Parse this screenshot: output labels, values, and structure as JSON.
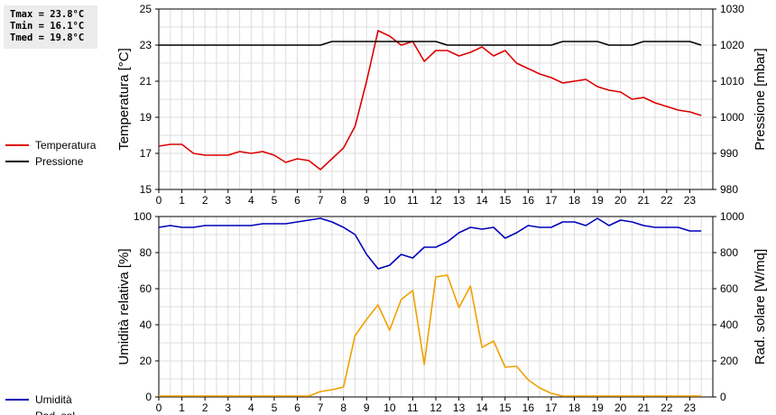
{
  "stats": {
    "tmax": "Tmax = 23.8°C",
    "tmin": "Tmin = 16.1°C",
    "tmed": "Tmed = 19.8°C"
  },
  "x_ticks": [
    "0",
    "1",
    "2",
    "3",
    "4",
    "5",
    "6",
    "7",
    "8",
    "9",
    "10",
    "11",
    "12",
    "13",
    "14",
    "15",
    "16",
    "17",
    "18",
    "19",
    "20",
    "21",
    "22",
    "23"
  ],
  "chart_data": [
    {
      "type": "line",
      "x_range": [
        0,
        24
      ],
      "grid": true,
      "legend_position": "left",
      "y_left": {
        "label": "Temperatura [°C]",
        "range": [
          15,
          25
        ],
        "ticks": [
          "15",
          "17",
          "19",
          "21",
          "23",
          "25"
        ]
      },
      "y_right": {
        "label": "Pressione [mbar]",
        "range": [
          980,
          1030
        ],
        "ticks": [
          "980",
          "990",
          "1000",
          "1010",
          "1020",
          "1030"
        ]
      },
      "series": [
        {
          "name": "Temperatura",
          "axis": "left",
          "color": "#dd0000",
          "x": [
            0,
            0.5,
            1,
            1.5,
            2,
            2.5,
            3,
            3.5,
            4,
            4.5,
            5,
            5.5,
            6,
            6.5,
            7,
            7.5,
            8,
            8.5,
            9,
            9.5,
            10,
            10.5,
            11,
            11.5,
            12,
            12.5,
            13,
            13.5,
            14,
            14.5,
            15,
            15.5,
            16,
            16.5,
            17,
            17.5,
            18,
            18.5,
            19,
            19.5,
            20,
            20.5,
            21,
            21.5,
            22,
            22.5,
            23,
            23.5
          ],
          "y": [
            17.4,
            17.5,
            17.5,
            17.0,
            16.9,
            16.9,
            16.9,
            17.1,
            17.0,
            17.1,
            16.9,
            16.5,
            16.7,
            16.6,
            16.1,
            16.7,
            17.3,
            18.5,
            21.0,
            23.8,
            23.5,
            23.0,
            23.2,
            22.1,
            22.7,
            22.7,
            22.4,
            22.6,
            22.9,
            22.4,
            22.7,
            22.0,
            21.7,
            21.4,
            21.2,
            20.9,
            21.0,
            21.1,
            20.7,
            20.5,
            20.4,
            20.0,
            20.1,
            19.8,
            19.6,
            19.4,
            19.3,
            19.1
          ]
        },
        {
          "name": "Pressione",
          "axis": "right",
          "color": "#000000",
          "x": [
            0,
            0.5,
            1,
            1.5,
            2,
            2.5,
            3,
            3.5,
            4,
            4.5,
            5,
            5.5,
            6,
            6.5,
            7,
            7.5,
            8,
            8.5,
            9,
            9.5,
            10,
            10.5,
            11,
            11.5,
            12,
            12.5,
            13,
            13.5,
            14,
            14.5,
            15,
            15.5,
            16,
            16.5,
            17,
            17.5,
            18,
            18.5,
            19,
            19.5,
            20,
            20.5,
            21,
            21.5,
            22,
            22.5,
            23,
            23.5
          ],
          "y": [
            1020,
            1020,
            1020,
            1020,
            1020,
            1020,
            1020,
            1020,
            1020,
            1020,
            1020,
            1020,
            1020,
            1020,
            1020,
            1021,
            1021,
            1021,
            1021,
            1021,
            1021,
            1021,
            1021,
            1021,
            1021,
            1020,
            1020,
            1020,
            1020,
            1020,
            1020,
            1020,
            1020,
            1020,
            1020,
            1021,
            1021,
            1021,
            1021,
            1020,
            1020,
            1020,
            1021,
            1021,
            1021,
            1021,
            1021,
            1020
          ]
        }
      ]
    },
    {
      "type": "line",
      "x_range": [
        0,
        24
      ],
      "grid": true,
      "legend_position": "left",
      "y_left": {
        "label": "Umidità relativa [%]",
        "range": [
          0,
          100
        ],
        "ticks": [
          "0",
          "20",
          "40",
          "60",
          "80",
          "100"
        ]
      },
      "y_right": {
        "label": "Rad. solare [W/mq]",
        "range": [
          0,
          1000
        ],
        "ticks": [
          "0",
          "200",
          "400",
          "600",
          "800",
          "1000"
        ]
      },
      "series": [
        {
          "name": "Umidità",
          "axis": "left",
          "color": "#0000bb",
          "x": [
            0,
            0.5,
            1,
            1.5,
            2,
            2.5,
            3,
            3.5,
            4,
            4.5,
            5,
            5.5,
            6,
            6.5,
            7,
            7.5,
            8,
            8.5,
            9,
            9.5,
            10,
            10.5,
            11,
            11.5,
            12,
            12.5,
            13,
            13.5,
            14,
            14.5,
            15,
            15.5,
            16,
            16.5,
            17,
            17.5,
            18,
            18.5,
            19,
            19.5,
            20,
            20.5,
            21,
            21.5,
            22,
            22.5,
            23,
            23.5
          ],
          "y": [
            94,
            95,
            94,
            94,
            95,
            95,
            95,
            95,
            95,
            96,
            96,
            96,
            97,
            98,
            99,
            97,
            94,
            90,
            79,
            71,
            73,
            79,
            77,
            83,
            83,
            86,
            91,
            94,
            93,
            94,
            88,
            91,
            95,
            94,
            94,
            97,
            97,
            95,
            99,
            95,
            98,
            97,
            95,
            94,
            94,
            94,
            92,
            92
          ]
        },
        {
          "name": "Rad. sol.",
          "axis": "right",
          "color": "#f0a000",
          "x": [
            0,
            0.5,
            1,
            1.5,
            2,
            2.5,
            3,
            3.5,
            4,
            4.5,
            5,
            5.5,
            6,
            6.5,
            7,
            7.5,
            8,
            8.5,
            9,
            9.5,
            10,
            10.5,
            11,
            11.5,
            12,
            12.5,
            13,
            13.5,
            14,
            14.5,
            15,
            15.5,
            16,
            16.5,
            17,
            17.5,
            18,
            18.5,
            19,
            19.5,
            20,
            20.5,
            21,
            21.5,
            22,
            22.5,
            23,
            23.5
          ],
          "y": [
            5,
            5,
            5,
            5,
            5,
            5,
            5,
            5,
            5,
            5,
            5,
            5,
            5,
            5,
            30,
            40,
            55,
            340,
            430,
            510,
            370,
            540,
            590,
            180,
            665,
            675,
            495,
            615,
            275,
            310,
            165,
            170,
            95,
            50,
            20,
            5,
            5,
            5,
            5,
            5,
            5,
            5,
            5,
            5,
            5,
            5,
            5,
            5
          ]
        }
      ]
    }
  ]
}
